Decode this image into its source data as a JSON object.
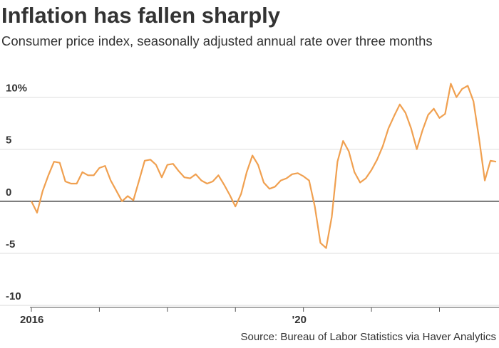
{
  "chart_data": {
    "type": "line",
    "title": "Inflation has fallen sharply",
    "subtitle": "Consumer price index, seasonally adjusted annual rate over three months",
    "source": "Source: Bureau of Labor Statistics via Haver Analytics",
    "categories": [
      "2016",
      null,
      null,
      null,
      null,
      null,
      null,
      null,
      null,
      null,
      null,
      null,
      null,
      null,
      null,
      null,
      null,
      null,
      null,
      null,
      null,
      null,
      null,
      null,
      null,
      null,
      null,
      null,
      null,
      null,
      null,
      null,
      null,
      null,
      null,
      null,
      null,
      null,
      null,
      null,
      null,
      null,
      null,
      null,
      null,
      null,
      null,
      null,
      "'20",
      null,
      null,
      null,
      null,
      null,
      null,
      null,
      null,
      null,
      null,
      null,
      null,
      null,
      null,
      null,
      null,
      null,
      null,
      null,
      null,
      null,
      null,
      null,
      null,
      null,
      null,
      null,
      null,
      null,
      null,
      null,
      null,
      null,
      null
    ],
    "series": [
      {
        "name": "CPI",
        "color": "#f0a050",
        "values": [
          0,
          -1.1,
          1,
          2.5,
          3.8,
          3.7,
          1.9,
          1.7,
          1.7,
          2.8,
          2.5,
          2.5,
          3.2,
          3.4,
          2.0,
          1.0,
          0,
          0.5,
          0.1,
          2.0,
          3.9,
          4.0,
          3.5,
          2.3,
          3.5,
          3.6,
          2.9,
          2.3,
          2.2,
          2.6,
          2.0,
          1.7,
          1.9,
          2.5,
          1.6,
          0.6,
          -0.5,
          0.7,
          2.8,
          4.4,
          3.5,
          1.8,
          1.2,
          1.4,
          2.0,
          2.2,
          2.6,
          2.7,
          2.4,
          2.0,
          -0.5,
          -4.0,
          -4.5,
          -1.5,
          3.8,
          5.8,
          4.8,
          2.8,
          1.8,
          2.2,
          3.0,
          4.0,
          5.3,
          7.0,
          8.2,
          9.3,
          8.5,
          7.0,
          5.0,
          6.8,
          8.3,
          8.9,
          8.0,
          8.4,
          11.3,
          10.0,
          10.8,
          11.1,
          9.6,
          6.0,
          2.0,
          3.9,
          3.8
        ]
      }
    ],
    "ylim": [
      -10.2,
      12.5
    ],
    "yticks": [
      -10,
      -5,
      0,
      5,
      {
        "value": 10,
        "label": "10%"
      }
    ],
    "grid": true
  }
}
